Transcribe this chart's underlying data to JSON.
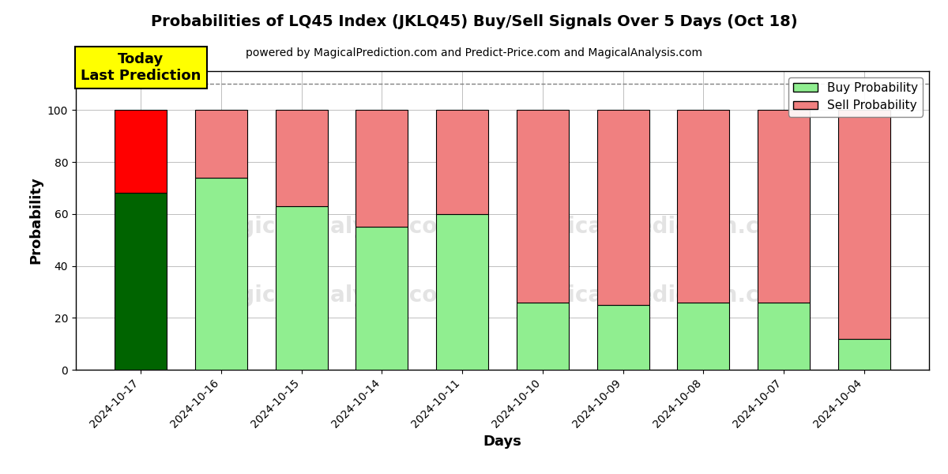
{
  "title": "Probabilities of LQ45 Index (JKLQ45) Buy/Sell Signals Over 5 Days (Oct 18)",
  "subtitle": "powered by MagicalPrediction.com and Predict-Price.com and MagicalAnalysis.com",
  "xlabel": "Days",
  "ylabel": "Probability",
  "dates": [
    "2024-10-17",
    "2024-10-16",
    "2024-10-15",
    "2024-10-14",
    "2024-10-11",
    "2024-10-10",
    "2024-10-09",
    "2024-10-08",
    "2024-10-07",
    "2024-10-04"
  ],
  "buy_probs": [
    68,
    74,
    63,
    55,
    60,
    26,
    25,
    26,
    26,
    12
  ],
  "sell_probs": [
    32,
    26,
    37,
    45,
    40,
    74,
    75,
    74,
    74,
    88
  ],
  "today_buy_color": "#006400",
  "today_sell_color": "#FF0000",
  "normal_buy_color": "#90EE90",
  "normal_sell_color": "#F08080",
  "today_annotation_bg": "#FFFF00",
  "today_annotation_text": "Today\nLast Prediction",
  "dashed_line_y": 110,
  "ylim": [
    0,
    115
  ],
  "yticks": [
    0,
    20,
    40,
    60,
    80,
    100
  ],
  "legend_buy_label": "Buy Probability",
  "legend_sell_label": "Sell Probability",
  "figsize": [
    12.0,
    6.0
  ],
  "dpi": 100
}
